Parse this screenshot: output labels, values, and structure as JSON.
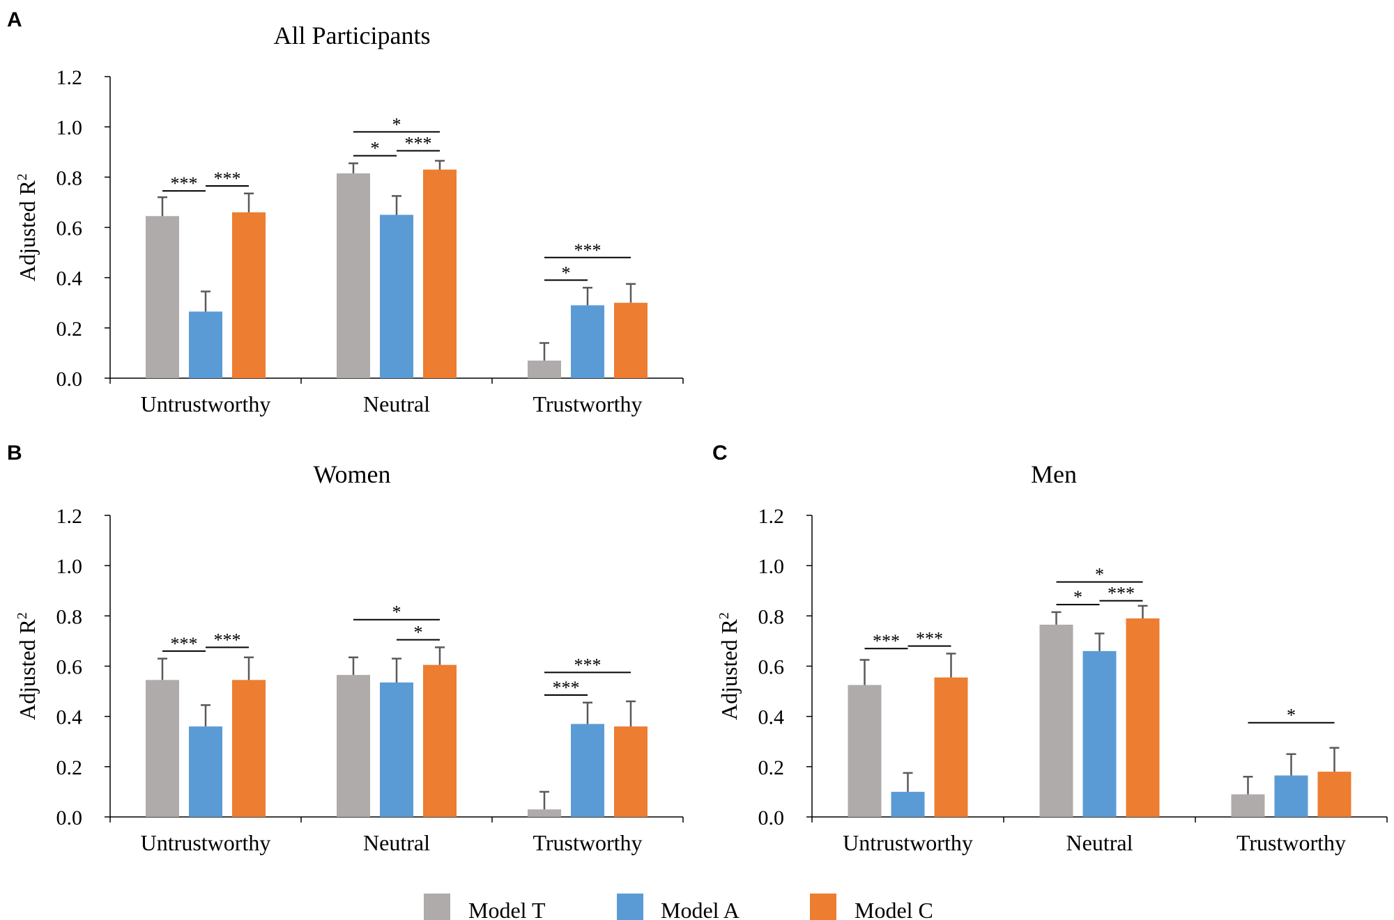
{
  "colors": {
    "model_t": "#afabab",
    "model_a": "#5b9bd5",
    "model_c": "#ed7d31",
    "axis": "#000000",
    "error": "#595959"
  },
  "legend": {
    "items": [
      {
        "label": "Model T",
        "color": "#afabab"
      },
      {
        "label": "Model A",
        "color": "#5b9bd5"
      },
      {
        "label": "Model C",
        "color": "#ed7d31"
      }
    ]
  },
  "chart_data": [
    {
      "panel_letter": "A",
      "type": "bar",
      "title": "All Participants",
      "ylabel": "Adjusted R",
      "ylabel_sup": "2",
      "ylim": [
        0,
        1.2
      ],
      "yticks": [
        "0.0",
        "0.2",
        "0.4",
        "0.6",
        "0.8",
        "1.0",
        "1.2"
      ],
      "categories": [
        "Untrustworthy",
        "Neutral",
        "Trustworthy"
      ],
      "series": [
        {
          "name": "Model T",
          "values": [
            0.645,
            0.815,
            0.07
          ],
          "errors": [
            0.075,
            0.04,
            0.07
          ]
        },
        {
          "name": "Model A",
          "values": [
            0.265,
            0.65,
            0.29
          ],
          "errors": [
            0.08,
            0.075,
            0.07
          ]
        },
        {
          "name": "Model C",
          "values": [
            0.66,
            0.83,
            0.3
          ],
          "errors": [
            0.075,
            0.035,
            0.075
          ]
        }
      ],
      "significance": [
        {
          "category": 0,
          "from": 0,
          "to": 1,
          "y": 0.745,
          "label": "***"
        },
        {
          "category": 0,
          "from": 1,
          "to": 2,
          "y": 0.765,
          "label": "***"
        },
        {
          "category": 1,
          "from": 0,
          "to": 1,
          "y": 0.885,
          "label": "*"
        },
        {
          "category": 1,
          "from": 1,
          "to": 2,
          "y": 0.905,
          "label": "***"
        },
        {
          "category": 1,
          "from": 0,
          "to": 2,
          "y": 0.98,
          "label": "*"
        },
        {
          "category": 2,
          "from": 0,
          "to": 1,
          "y": 0.39,
          "label": "*"
        },
        {
          "category": 2,
          "from": 0,
          "to": 2,
          "y": 0.48,
          "label": "***"
        }
      ]
    },
    {
      "panel_letter": "B",
      "type": "bar",
      "title": "Women",
      "ylabel": "Adjusted R",
      "ylabel_sup": "2",
      "ylim": [
        0,
        1.2
      ],
      "yticks": [
        "0.0",
        "0.2",
        "0.4",
        "0.6",
        "0.8",
        "1.0",
        "1.2"
      ],
      "categories": [
        "Untrustworthy",
        "Neutral",
        "Trustworthy"
      ],
      "series": [
        {
          "name": "Model T",
          "values": [
            0.545,
            0.565,
            0.03
          ],
          "errors": [
            0.085,
            0.07,
            0.07
          ]
        },
        {
          "name": "Model A",
          "values": [
            0.36,
            0.535,
            0.37
          ],
          "errors": [
            0.085,
            0.095,
            0.085
          ]
        },
        {
          "name": "Model C",
          "values": [
            0.545,
            0.605,
            0.36
          ],
          "errors": [
            0.09,
            0.07,
            0.1
          ]
        }
      ],
      "significance": [
        {
          "category": 0,
          "from": 0,
          "to": 1,
          "y": 0.66,
          "label": "***"
        },
        {
          "category": 0,
          "from": 1,
          "to": 2,
          "y": 0.675,
          "label": "***"
        },
        {
          "category": 1,
          "from": 1,
          "to": 2,
          "y": 0.705,
          "label": "*"
        },
        {
          "category": 1,
          "from": 0,
          "to": 2,
          "y": 0.785,
          "label": "*"
        },
        {
          "category": 2,
          "from": 0,
          "to": 1,
          "y": 0.485,
          "label": "***"
        },
        {
          "category": 2,
          "from": 0,
          "to": 2,
          "y": 0.575,
          "label": "***"
        }
      ]
    },
    {
      "panel_letter": "C",
      "type": "bar",
      "title": "Men",
      "ylabel": "Adjusted R",
      "ylabel_sup": "2",
      "ylim": [
        0,
        1.2
      ],
      "yticks": [
        "0.0",
        "0.2",
        "0.4",
        "0.6",
        "0.8",
        "1.0",
        "1.2"
      ],
      "categories": [
        "Untrustworthy",
        "Neutral",
        "Trustworthy"
      ],
      "series": [
        {
          "name": "Model T",
          "values": [
            0.525,
            0.765,
            0.09
          ],
          "errors": [
            0.1,
            0.05,
            0.07
          ]
        },
        {
          "name": "Model A",
          "values": [
            0.1,
            0.66,
            0.165
          ],
          "errors": [
            0.075,
            0.07,
            0.085
          ]
        },
        {
          "name": "Model C",
          "values": [
            0.555,
            0.79,
            0.18
          ],
          "errors": [
            0.095,
            0.05,
            0.095
          ]
        }
      ],
      "significance": [
        {
          "category": 0,
          "from": 0,
          "to": 1,
          "y": 0.67,
          "label": "***"
        },
        {
          "category": 0,
          "from": 1,
          "to": 2,
          "y": 0.68,
          "label": "***"
        },
        {
          "category": 1,
          "from": 0,
          "to": 1,
          "y": 0.845,
          "label": "*"
        },
        {
          "category": 1,
          "from": 1,
          "to": 2,
          "y": 0.86,
          "label": "***"
        },
        {
          "category": 1,
          "from": 0,
          "to": 2,
          "y": 0.935,
          "label": "*"
        },
        {
          "category": 2,
          "from": 0,
          "to": 2,
          "y": 0.375,
          "label": "*"
        }
      ]
    }
  ]
}
